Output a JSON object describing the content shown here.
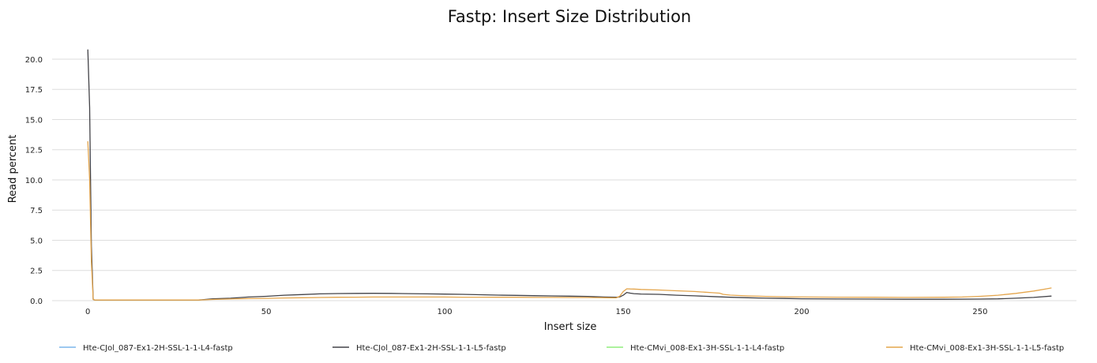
{
  "chart_data": {
    "type": "line",
    "title": "Fastp: Insert Size Distribution",
    "xlabel": "Insert size",
    "ylabel": "Read percent",
    "xlim": [
      -10,
      277
    ],
    "ylim": [
      0,
      21.5
    ],
    "xticks": [
      0,
      50,
      100,
      150,
      200,
      250
    ],
    "xtick_labels": [
      "0",
      "50",
      "100",
      "150",
      "200",
      "250"
    ],
    "yticks": [
      0,
      2.5,
      5,
      7.5,
      10,
      12.5,
      15,
      17.5,
      20
    ],
    "ytick_labels": [
      "0.0",
      "2.5",
      "5.0",
      "7.5",
      "10.0",
      "12.5",
      "15.0",
      "17.5",
      "20.0"
    ],
    "grid": true,
    "legend_position": "bottom",
    "series": [
      {
        "name": "Hte-CJol_087-Ex1-2H-SSL-1-1-L4-fastp",
        "color": "#7cb5ec",
        "x": [],
        "y": []
      },
      {
        "name": "Hte-CJol_087-Ex1-2H-SSL-1-1-L5-fastp",
        "color": "#434348",
        "x": [
          0,
          0.5,
          1,
          1.5,
          2,
          31,
          35,
          40,
          45,
          50,
          55,
          60,
          65,
          70,
          75,
          80,
          85,
          90,
          95,
          100,
          105,
          110,
          115,
          120,
          125,
          130,
          135,
          140,
          145,
          148,
          149,
          150,
          151,
          152,
          153,
          155,
          160,
          165,
          170,
          175,
          180,
          185,
          190,
          195,
          200,
          210,
          220,
          230,
          240,
          250,
          255,
          260,
          265,
          270
        ],
        "y": [
          20.8,
          16,
          4.5,
          0.1,
          0.05,
          0.05,
          0.15,
          0.2,
          0.3,
          0.36,
          0.45,
          0.5,
          0.56,
          0.59,
          0.6,
          0.61,
          0.6,
          0.58,
          0.56,
          0.54,
          0.52,
          0.49,
          0.46,
          0.44,
          0.41,
          0.39,
          0.37,
          0.35,
          0.3,
          0.28,
          0.3,
          0.45,
          0.68,
          0.62,
          0.58,
          0.55,
          0.52,
          0.45,
          0.4,
          0.34,
          0.28,
          0.24,
          0.2,
          0.18,
          0.16,
          0.14,
          0.13,
          0.12,
          0.12,
          0.13,
          0.15,
          0.2,
          0.27,
          0.38
        ]
      },
      {
        "name": "Hte-CMvi_008-Ex1-3H-SSL-1-1-L4-fastp",
        "color": "#90ed7d",
        "x": [],
        "y": []
      },
      {
        "name": "Hte-CMvi_008-Ex1-3H-SSL-1-1-L5-fastp",
        "color": "#e4a54c",
        "x": [
          0,
          0.5,
          1,
          1.5,
          2,
          31,
          35,
          40,
          45,
          50,
          55,
          60,
          65,
          70,
          75,
          80,
          85,
          90,
          95,
          100,
          105,
          110,
          115,
          120,
          125,
          130,
          135,
          140,
          145,
          148,
          149,
          150,
          151,
          152,
          153,
          155,
          160,
          165,
          170,
          173,
          175,
          177,
          178,
          180,
          185,
          190,
          195,
          200,
          210,
          220,
          230,
          240,
          245,
          250,
          255,
          260,
          265,
          268,
          270
        ],
        "y": [
          13.2,
          10,
          3.2,
          0.1,
          0.05,
          0.05,
          0.1,
          0.14,
          0.17,
          0.19,
          0.22,
          0.24,
          0.26,
          0.28,
          0.29,
          0.3,
          0.3,
          0.3,
          0.3,
          0.3,
          0.29,
          0.29,
          0.28,
          0.28,
          0.27,
          0.27,
          0.26,
          0.26,
          0.24,
          0.23,
          0.35,
          0.75,
          0.98,
          0.97,
          0.96,
          0.93,
          0.88,
          0.82,
          0.76,
          0.7,
          0.66,
          0.62,
          0.52,
          0.46,
          0.39,
          0.35,
          0.32,
          0.3,
          0.29,
          0.28,
          0.27,
          0.28,
          0.3,
          0.36,
          0.45,
          0.6,
          0.8,
          0.95,
          1.05
        ]
      }
    ]
  }
}
